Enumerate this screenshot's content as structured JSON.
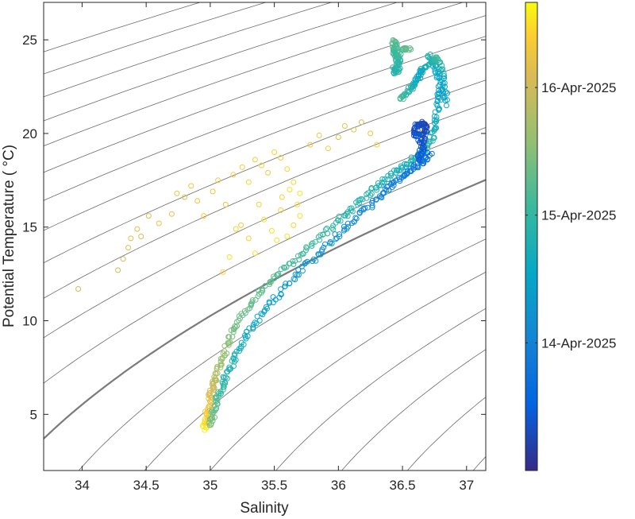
{
  "chart_data": {
    "type": "scatter",
    "title": "",
    "xlabel": "Salinity",
    "ylabel": "Potential Temperature ( °C)",
    "xlim": [
      33.7,
      37.15
    ],
    "ylim": [
      2,
      27
    ],
    "xticks": [
      "34",
      "34.5",
      "35",
      "35.5",
      "36",
      "36.5",
      "37"
    ],
    "yticks": [
      "5",
      "10",
      "15",
      "20",
      "25"
    ],
    "grid": false,
    "background_contours": "density isopycnals (gray), one highlighted in darker gray",
    "colorbar": {
      "label_ticks": [
        "14-Apr-2025",
        "15-Apr-2025",
        "16-Apr-2025"
      ],
      "colormap": "parula",
      "range_days": [
        0,
        4.4
      ],
      "tick_days": [
        1.2,
        2.4,
        3.6
      ]
    },
    "series": [
      {
        "segments": [
          {
            "points": [
              [
                34.95,
                4.2
              ],
              [
                34.97,
                4.8
              ],
              [
                34.99,
                5.6
              ],
              [
                35.02,
                6.4
              ],
              [
                35.05,
                7.2
              ],
              [
                35.1,
                8.2
              ],
              [
                35.17,
                9.4
              ],
              [
                35.28,
                10.6
              ],
              [
                35.42,
                11.8
              ],
              [
                35.6,
                12.9
              ],
              [
                35.78,
                14.0
              ],
              [
                35.97,
                15.1
              ],
              [
                36.12,
                16.1
              ],
              [
                36.27,
                17.0
              ],
              [
                36.4,
                17.7
              ],
              [
                36.52,
                18.3
              ],
              [
                36.62,
                18.8
              ],
              [
                36.7,
                19.3
              ],
              [
                36.75,
                20.2
              ],
              [
                36.78,
                21.5
              ],
              [
                36.8,
                22.6
              ],
              [
                36.76,
                23.6
              ],
              [
                36.7,
                24.2
              ]
            ],
            "color_days": [
              4.3,
              4.1,
              3.9,
              3.6,
              3.3,
              3.1,
              2.9,
              2.8,
              2.7,
              2.6,
              2.5,
              2.4,
              2.3,
              2.2,
              2.1,
              2.0,
              2.2,
              2.4,
              2.1,
              1.9,
              1.7,
              2.0,
              2.2
            ]
          },
          {
            "points": [
              [
                34.99,
                4.4
              ],
              [
                35.03,
                5.2
              ],
              [
                35.07,
                6.1
              ],
              [
                35.12,
                7.0
              ],
              [
                35.2,
                8.1
              ],
              [
                35.3,
                9.4
              ],
              [
                35.45,
                10.8
              ],
              [
                35.62,
                12.1
              ],
              [
                35.82,
                13.4
              ],
              [
                36.0,
                14.6
              ],
              [
                36.18,
                15.7
              ],
              [
                36.33,
                16.7
              ],
              [
                36.45,
                17.4
              ],
              [
                36.56,
                18.0
              ],
              [
                36.66,
                18.5
              ],
              [
                36.72,
                19.0
              ]
            ],
            "color_days": [
              3.0,
              2.8,
              2.5,
              2.3,
              2.1,
              1.9,
              1.7,
              1.6,
              1.5,
              1.4,
              1.3,
              1.2,
              1.1,
              1.0,
              0.9,
              0.8
            ]
          },
          {
            "points": [
              [
                36.62,
                18.6
              ],
              [
                36.65,
                19.2
              ],
              [
                36.66,
                19.8
              ],
              [
                36.68,
                20.3
              ],
              [
                36.64,
                20.6
              ],
              [
                36.6,
                20.2
              ],
              [
                36.62,
                19.6
              ]
            ],
            "color_days": [
              0.6,
              0.5,
              0.4,
              0.35,
              0.3,
              0.4,
              0.5
            ]
          },
          {
            "points": [
              [
                36.48,
                21.8
              ],
              [
                36.55,
                22.3
              ],
              [
                36.6,
                22.8
              ],
              [
                36.65,
                23.3
              ],
              [
                36.72,
                23.8
              ],
              [
                36.78,
                24.1
              ],
              [
                36.82,
                22.8
              ],
              [
                36.84,
                21.5
              ]
            ],
            "color_days": [
              2.6,
              2.3,
              2.0,
              1.8,
              2.2,
              2.5,
              1.9,
              1.7
            ]
          },
          {
            "points": [
              [
                36.43,
                24.9
              ],
              [
                36.45,
                24.6
              ],
              [
                36.44,
                24.3
              ],
              [
                36.47,
                24.0
              ],
              [
                36.46,
                23.4
              ],
              [
                36.43,
                23.3
              ],
              [
                36.5,
                24.4
              ],
              [
                36.55,
                24.6
              ]
            ],
            "color_days": [
              2.7,
              2.6,
              2.5,
              2.4,
              2.3,
              2.2,
              2.6,
              2.8
            ]
          },
          {
            "points": [
              [
                33.97,
                11.7
              ],
              [
                34.28,
                12.7
              ],
              [
                34.32,
                13.3
              ],
              [
                34.36,
                13.9
              ],
              [
                34.38,
                14.4
              ],
              [
                34.46,
                14.5
              ],
              [
                34.43,
                14.9
              ],
              [
                34.52,
                15.6
              ],
              [
                34.6,
                15.2
              ],
              [
                34.7,
                15.7
              ],
              [
                34.74,
                16.8
              ],
              [
                34.8,
                16.6
              ],
              [
                34.85,
                17.2
              ],
              [
                34.9,
                16.4
              ],
              [
                34.95,
                15.6
              ],
              [
                35.02,
                16.9
              ],
              [
                35.06,
                17.5
              ],
              [
                35.12,
                16.2
              ],
              [
                35.18,
                17.8
              ],
              [
                35.25,
                18.2
              ],
              [
                35.3,
                17.4
              ],
              [
                35.35,
                18.6
              ],
              [
                35.4,
                18.3
              ],
              [
                35.45,
                17.9
              ],
              [
                35.5,
                19.0
              ],
              [
                35.55,
                18.7
              ],
              [
                35.6,
                18.1
              ],
              [
                35.65,
                17.4
              ],
              [
                35.7,
                16.8
              ],
              [
                35.78,
                19.4
              ],
              [
                35.85,
                19.9
              ],
              [
                35.92,
                19.2
              ],
              [
                36.0,
                19.8
              ],
              [
                36.05,
                20.4
              ],
              [
                36.12,
                20.2
              ],
              [
                36.18,
                20.6
              ],
              [
                36.25,
                20.0
              ],
              [
                36.3,
                19.4
              ],
              [
                35.38,
                16.2
              ],
              [
                35.42,
                15.4
              ],
              [
                35.48,
                14.8
              ],
              [
                35.52,
                14.3
              ],
              [
                35.55,
                15.9
              ],
              [
                35.6,
                14.5
              ],
              [
                35.65,
                15.1
              ],
              [
                35.7,
                15.6
              ],
              [
                35.35,
                13.6
              ],
              [
                35.3,
                14.4
              ],
              [
                35.24,
                15.1
              ],
              [
                35.2,
                14.9
              ],
              [
                35.15,
                13.4
              ],
              [
                35.1,
                12.6
              ],
              [
                35.56,
                16.6
              ],
              [
                35.62,
                17.0
              ],
              [
                35.68,
                16.2
              ]
            ],
            "color_days": [
              3.6,
              3.7,
              3.7,
              3.8,
              3.8,
              3.7,
              3.8,
              3.8,
              3.9,
              3.8,
              3.9,
              3.8,
              3.9,
              3.9,
              4.0,
              3.9,
              4.0,
              3.9,
              4.0,
              4.0,
              4.1,
              4.0,
              4.1,
              4.0,
              4.1,
              4.0,
              4.1,
              4.1,
              4.2,
              4.0,
              3.9,
              4.0,
              3.8,
              3.9,
              3.8,
              3.7,
              3.9,
              4.1,
              4.1,
              4.2,
              4.2,
              4.2,
              4.1,
              4.2,
              4.1,
              4.2,
              4.2,
              4.1,
              4.0,
              4.1,
              4.2,
              4.1,
              4.1,
              4.2,
              4.2
            ]
          }
        ]
      }
    ]
  }
}
